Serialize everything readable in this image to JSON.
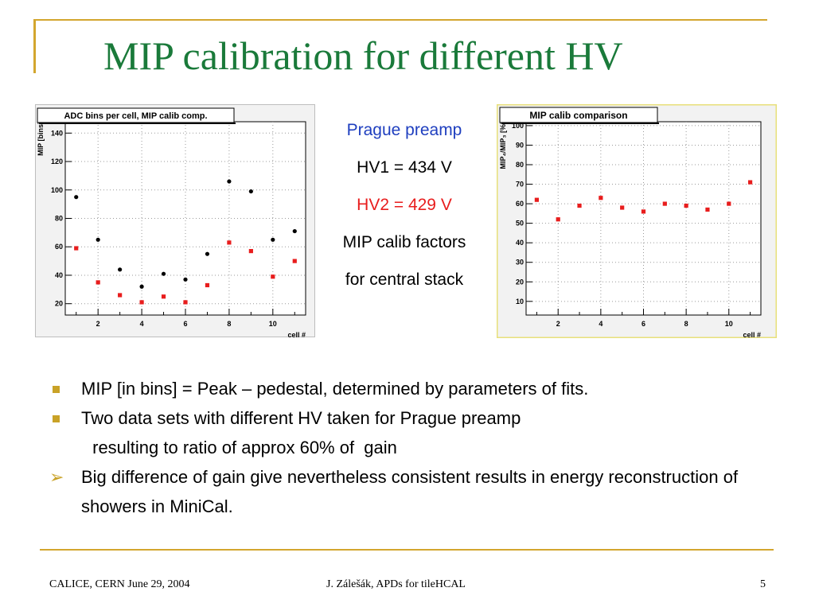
{
  "slide": {
    "title": "MIP calibration for different HV",
    "middle": {
      "line1": "Prague preamp",
      "line2": "HV1 = 434 V",
      "line3": "HV2 = 429 V",
      "line4": "MIP calib factors",
      "line5": "for central stack"
    },
    "bullets": [
      {
        "text": "MIP [in bins] = Peak – pedestal, determined by parameters of fits."
      },
      {
        "text": "Two data sets with different HV taken for Prague preamp",
        "cont": " resulting to ratio of approx 60% of  gain"
      },
      {
        "text": "Big difference of gain give nevertheless consistent results in energy reconstruction of showers in MiniCal."
      }
    ],
    "footer": {
      "left": "CALICE, CERN June 29, 2004",
      "center": "J. Zálešák, APDs for tileHCAL",
      "page": "5"
    }
  },
  "colors": {
    "title": "#1a7a3a",
    "accent": "#d3a62e",
    "hv1": "#000000",
    "hv2": "#e81d1d",
    "prague": "#1f3fbf"
  },
  "chart_data": [
    {
      "type": "scatter",
      "title": "ADC bins per cell, MIP calib comp.",
      "xlabel": "cell #",
      "ylabel": "MIP [bins]",
      "xlim": [
        0.5,
        11.5
      ],
      "ylim": [
        12,
        148
      ],
      "xticks": [
        2,
        4,
        6,
        8,
        10
      ],
      "yticks": [
        20,
        40,
        60,
        80,
        100,
        120,
        140
      ],
      "grid": true,
      "series": [
        {
          "color": "#000000",
          "marker": "circle",
          "x": [
            1,
            2,
            3,
            4,
            5,
            6,
            7,
            8,
            9,
            10,
            11
          ],
          "y": [
            95,
            65,
            44,
            32,
            41,
            37,
            55,
            106,
            99,
            65,
            71
          ]
        },
        {
          "color": "#e81d1d",
          "marker": "square",
          "x": [
            1,
            2,
            3,
            4,
            5,
            6,
            7,
            8,
            9,
            10,
            11
          ],
          "y": [
            59,
            35,
            26,
            21,
            25,
            21,
            33,
            63,
            57,
            39,
            50
          ]
        }
      ]
    },
    {
      "type": "scatter",
      "title": "MIP calib comparison",
      "xlabel": "cell #",
      "ylabel": "MIP₄/MIP₃ [%]",
      "xlim": [
        0.5,
        11.5
      ],
      "ylim": [
        3,
        102
      ],
      "xticks": [
        2,
        4,
        6,
        8,
        10
      ],
      "yticks": [
        10,
        20,
        30,
        40,
        50,
        60,
        70,
        80,
        90,
        100
      ],
      "grid": true,
      "series": [
        {
          "color": "#e81d1d",
          "marker": "square",
          "x": [
            1,
            2,
            3,
            4,
            5,
            6,
            7,
            8,
            9,
            10,
            11
          ],
          "y": [
            62,
            52,
            59,
            63,
            58,
            56,
            60,
            59,
            57,
            60,
            71
          ]
        }
      ]
    }
  ]
}
